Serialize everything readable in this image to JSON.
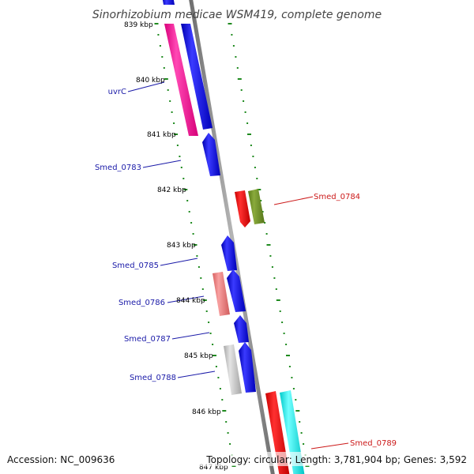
{
  "title": "Sinorhizobium medicae WSM419, complete genome",
  "footer": {
    "accession": "Accession: NC_009636",
    "topology": "Topology: circular; Length: 3,781,904 bp; Genes: 3,592"
  },
  "kbp_ticks": [
    "839 kbp",
    "840 kbp",
    "841 kbp",
    "842 kbp",
    "843 kbp",
    "844 kbp",
    "845 kbp",
    "846 kbp",
    "847 kbp"
  ],
  "gene_labels_left": [
    "uvrC",
    "Smed_0783",
    "Smed_0785",
    "Smed_0786",
    "Smed_0787",
    "Smed_0788"
  ],
  "gene_labels_right": [
    "Smed_0784",
    "Smed_0789"
  ],
  "colors": {
    "backbone": "#8c8c8c",
    "tick_dots": "#1f8a1f",
    "cds_forward": "#1a1acc",
    "pink": "#ff1a9a",
    "red": "#e60000",
    "olive": "#6b8a26",
    "salmon": "#ec7a7a",
    "grey": "#c8c8c8",
    "cyan": "#22ecec",
    "left_label": "#1a1aa8",
    "right_label": "#cc1a1a"
  }
}
